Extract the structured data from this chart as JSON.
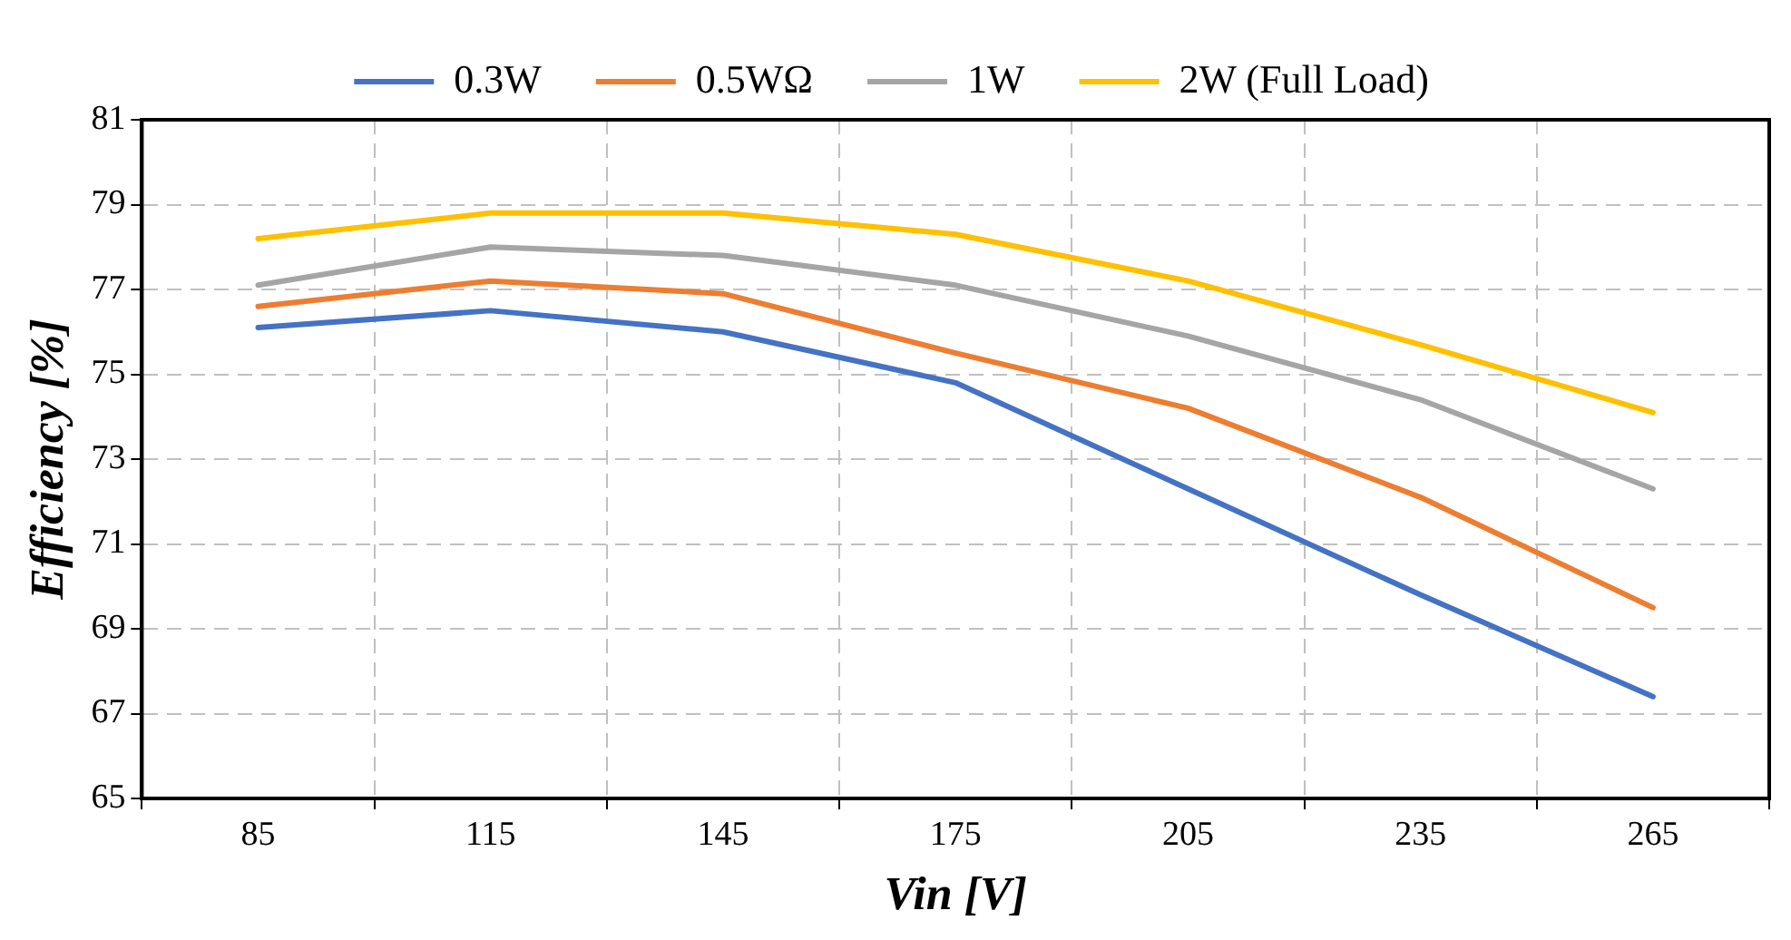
{
  "chart_data": {
    "type": "line",
    "xlabel": "Vin [V]",
    "ylabel": "Efficiency [%]",
    "categories": [
      "85",
      "115",
      "145",
      "175",
      "205",
      "235",
      "265"
    ],
    "series": [
      {
        "name": "0.3W",
        "color": "#4472c4",
        "values": [
          76.1,
          76.5,
          76.0,
          74.8,
          72.3,
          69.8,
          67.4
        ]
      },
      {
        "name": "0.5WΩ",
        "color": "#ed7d31",
        "values": [
          76.6,
          77.2,
          76.9,
          75.5,
          74.2,
          72.1,
          69.5
        ]
      },
      {
        "name": "1W",
        "color": "#a5a5a5",
        "values": [
          77.1,
          78.0,
          77.8,
          77.1,
          75.9,
          74.4,
          72.3
        ]
      },
      {
        "name": "2W (Full Load)",
        "color": "#ffc000",
        "values": [
          78.2,
          78.8,
          78.8,
          78.3,
          77.2,
          75.7,
          74.1
        ]
      }
    ],
    "ylim": [
      65,
      81
    ],
    "yticks": [
      65,
      67,
      69,
      71,
      73,
      75,
      77,
      79,
      81
    ],
    "grid": true,
    "legend": "top",
    "marker": "none",
    "line_style": "solid"
  }
}
